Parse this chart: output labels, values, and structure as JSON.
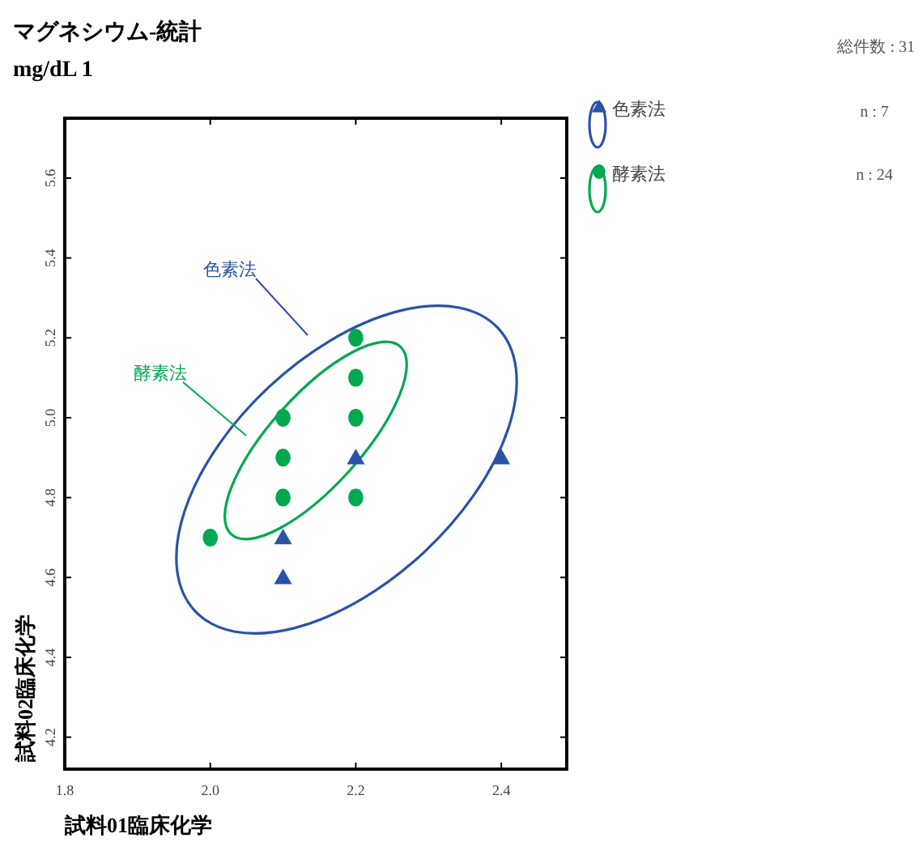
{
  "chart_data": {
    "type": "scatter",
    "title": "マグネシウム-統計",
    "subtitle": "mg/dL  1",
    "xlabel": "試料01臨床化学",
    "ylabel": "試料02臨床化学",
    "xlim": [
      1.8,
      2.49
    ],
    "ylim": [
      4.12,
      5.75
    ],
    "xticks": [
      1.8,
      {
        "value": 2.0,
        "label": "2.0"
      },
      2.2,
      2.4
    ],
    "yticks": [
      4.2,
      4.4,
      4.6,
      4.8,
      {
        "value": 5.0,
        "label": "5.0"
      },
      5.2,
      5.4,
      5.6
    ],
    "grid": false,
    "legend": "right",
    "series": [
      {
        "name": "色素法",
        "type": "scatter",
        "marker": "triangle",
        "color": "#2a52a8",
        "x": [
          2.1,
          2.1,
          2.2,
          2.4
        ],
        "values": [
          4.7,
          4.6,
          4.9,
          4.9
        ]
      },
      {
        "name": "酵素法",
        "type": "scatter",
        "marker": "circle",
        "color": "#00a84f",
        "x": [
          2.0,
          2.1,
          2.1,
          2.1,
          2.2,
          2.2,
          2.2,
          2.2
        ],
        "values": [
          4.7,
          5.0,
          4.9,
          4.8,
          5.2,
          5.1,
          5.0,
          4.8
        ]
      }
    ],
    "annotations": [
      "色素法",
      "酵素法",
      "総件数 : 31",
      "n : 7",
      "n : 24"
    ]
  }
}
